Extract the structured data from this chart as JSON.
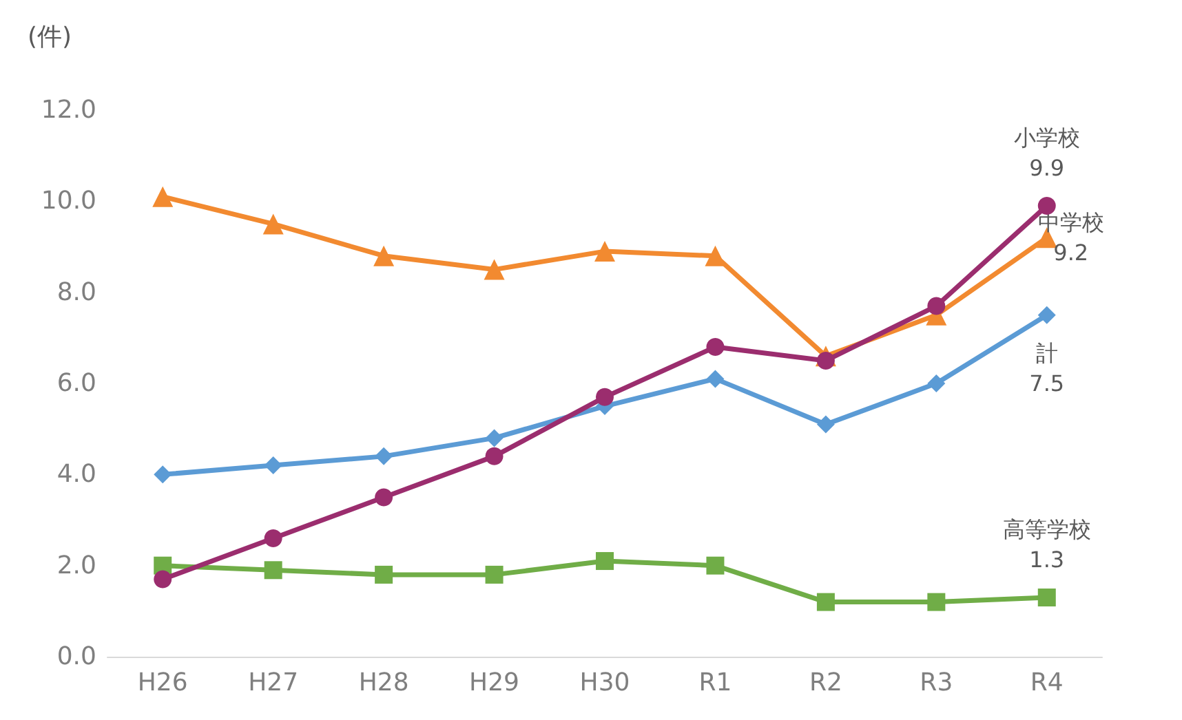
{
  "chart_data": {
    "type": "line",
    "ylabel": "(件)",
    "categories": [
      "H26",
      "H27",
      "H28",
      "H29",
      "H30",
      "R1",
      "R2",
      "R3",
      "R4"
    ],
    "ylim": [
      0,
      12
    ],
    "yticks": [
      {
        "value": 0,
        "label": "0.0"
      },
      {
        "value": 2,
        "label": "2.0"
      },
      {
        "value": 4,
        "label": "4.0"
      },
      {
        "value": 6,
        "label": "6.0"
      },
      {
        "value": 8,
        "label": "8.0"
      },
      {
        "value": 10,
        "label": "10.0"
      },
      {
        "value": 12,
        "label": "12.0"
      }
    ],
    "grid": false,
    "legend": false,
    "series": [
      {
        "name": "小学校",
        "color": "#9b2d6e",
        "marker": "circle",
        "values": [
          1.7,
          2.6,
          3.5,
          4.4,
          5.7,
          6.8,
          6.5,
          7.7,
          9.9
        ],
        "value_labels": [
          null,
          null,
          null,
          null,
          null,
          null,
          null,
          null,
          "9.9"
        ]
      },
      {
        "name": "中学校",
        "color": "#f28a30",
        "marker": "triangle",
        "values": [
          10.1,
          9.5,
          8.8,
          8.5,
          8.9,
          8.8,
          6.6,
          7.5,
          9.2
        ],
        "value_labels": [
          null,
          null,
          null,
          null,
          null,
          null,
          null,
          null,
          "9.2"
        ]
      },
      {
        "name": "計",
        "color": "#5b9bd5",
        "marker": "diamond",
        "values": [
          4.0,
          4.2,
          4.4,
          4.8,
          5.5,
          6.1,
          5.1,
          6.0,
          7.5
        ],
        "value_labels": [
          null,
          null,
          null,
          null,
          null,
          null,
          null,
          null,
          "7.5"
        ]
      },
      {
        "name": "高等学校",
        "color": "#70ad47",
        "marker": "square",
        "values": [
          2.0,
          1.9,
          1.8,
          1.8,
          2.1,
          2.0,
          1.2,
          1.2,
          1.3
        ],
        "value_labels": [
          null,
          null,
          null,
          null,
          null,
          null,
          null,
          null,
          "1.3"
        ]
      }
    ]
  }
}
